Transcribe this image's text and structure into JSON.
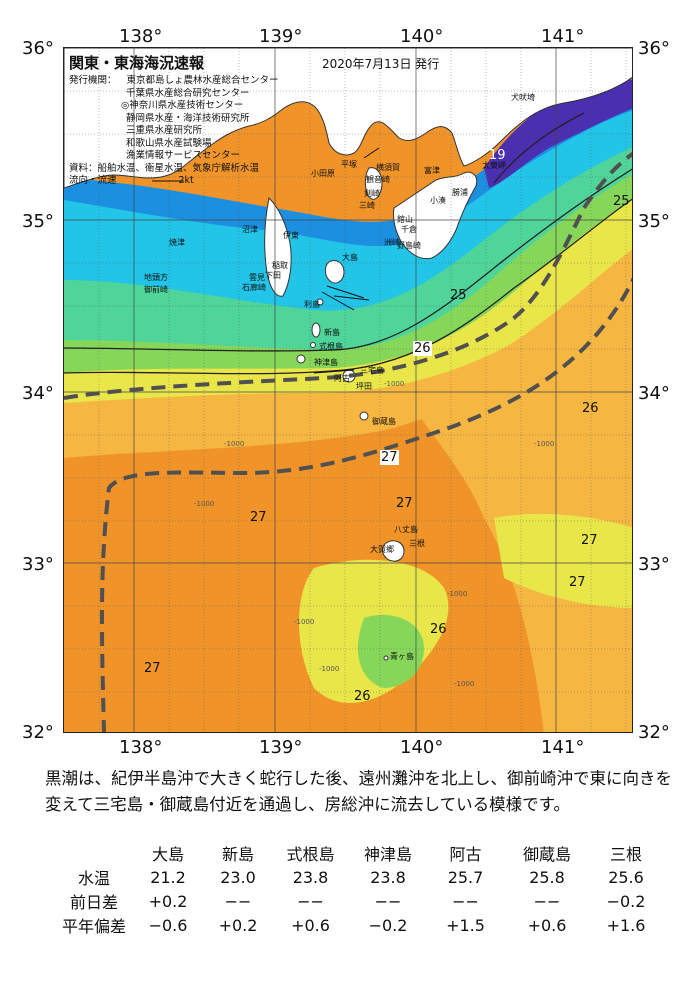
{
  "map": {
    "title": "関東・東海海況速報",
    "issued": "2020年7月13日 発行",
    "issuers_label": "発行機関：",
    "issuers": [
      "東京都島しょ農林水産総合センター",
      "千葉県水産総合研究センター",
      "◎神奈川県水産技術センター",
      "静岡県水産・海洋技術研究所",
      "三重県水産研究所",
      "和歌山県水産試験場",
      "漁業情報サービスセンター"
    ],
    "sources": "資料：船舶水温、衛星水温、気象庁解析水温",
    "current_legend": "流向・流速",
    "current_scale": "2kt",
    "lon_labels": [
      "138°",
      "139°",
      "140°",
      "141°"
    ],
    "lat_labels": [
      "36°",
      "35°",
      "34°",
      "33°",
      "32°"
    ],
    "places": [
      "犬吠埼",
      "太東岬",
      "勝浦",
      "小湊",
      "洲崎",
      "館山",
      "千倉",
      "野島崎",
      "富津",
      "横須賀",
      "観音崎",
      "平塚",
      "剣崎",
      "三崎",
      "小田原",
      "伊東",
      "稲取",
      "下田",
      "石廊崎",
      "雲見",
      "沼津",
      "焼津",
      "地頭方",
      "御前崎",
      "大島",
      "利島",
      "新島",
      "式根島",
      "神津島",
      "三宅島",
      "御蔵島",
      "八丈島",
      "大賀郷",
      "三根",
      "青ヶ島",
      "阿古",
      "坪田"
    ],
    "isotherms": [
      "19",
      "25",
      "25",
      "26",
      "26",
      "27",
      "27",
      "27",
      "27",
      "27",
      "26",
      "27",
      "26"
    ],
    "depth_labels": [
      "-1000",
      "-1000",
      "-1000",
      "-1000",
      "-1000",
      "-1000",
      "-1000",
      "-1000"
    ],
    "colors": {
      "deep_cold": "#4a2fb0",
      "cold": "#1c8fe0",
      "cool": "#22c4e8",
      "mild": "#4fd49a",
      "green": "#86d65a",
      "yellow": "#e9e64a",
      "warm": "#f5b642",
      "hot": "#f0942a",
      "kuroshio_axis": "#505050"
    }
  },
  "narrative": "黒潮は、紀伊半島沖で大きく蛇行した後、遠州灘沖を北上し、御前崎沖で東に向きを変えて三宅島・御蔵島付近を通過し、房総沖に流去している模様です。",
  "table": {
    "stations": [
      "大島",
      "新島",
      "式根島",
      "神津島",
      "阿古",
      "御蔵島",
      "三根"
    ],
    "rows": [
      {
        "label": "水温",
        "values": [
          "21.2",
          "23.0",
          "23.8",
          "23.8",
          "25.7",
          "25.8",
          "25.6"
        ]
      },
      {
        "label": "前日差",
        "values": [
          "+0.2",
          "−−",
          "−−",
          "−−",
          "−−",
          "−−",
          "−0.2"
        ]
      },
      {
        "label": "平年偏差",
        "values": [
          "−0.6",
          "+0.2",
          "+0.6",
          "−0.2",
          "+1.5",
          "+0.6",
          "+1.6"
        ]
      }
    ]
  }
}
